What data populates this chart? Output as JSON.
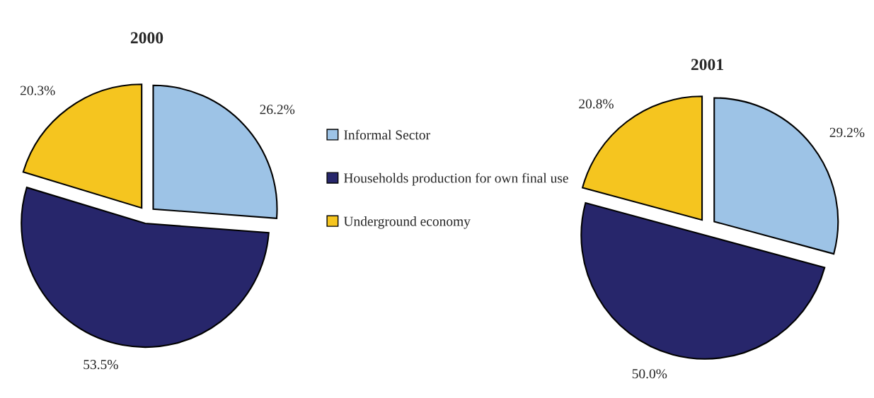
{
  "chart_data": [
    {
      "type": "pie",
      "title": "2000",
      "categories": [
        "Informal Sector",
        "Households production for own final use",
        "Underground economy"
      ],
      "values": [
        26.2,
        53.5,
        20.3
      ],
      "colors": [
        "#9dc3e6",
        "#27266b",
        "#f5c51f"
      ],
      "value_labels": [
        "26.2%",
        "53.5%",
        "20.3%"
      ],
      "legend": "right"
    },
    {
      "type": "pie",
      "title": "2001",
      "values": [
        29.2,
        50.0,
        20.8
      ],
      "colors": [
        "#9dc3e6",
        "#27266b",
        "#f5c51f"
      ],
      "value_labels": [
        "29.2%",
        "50.0%",
        "20.8%"
      ]
    }
  ]
}
